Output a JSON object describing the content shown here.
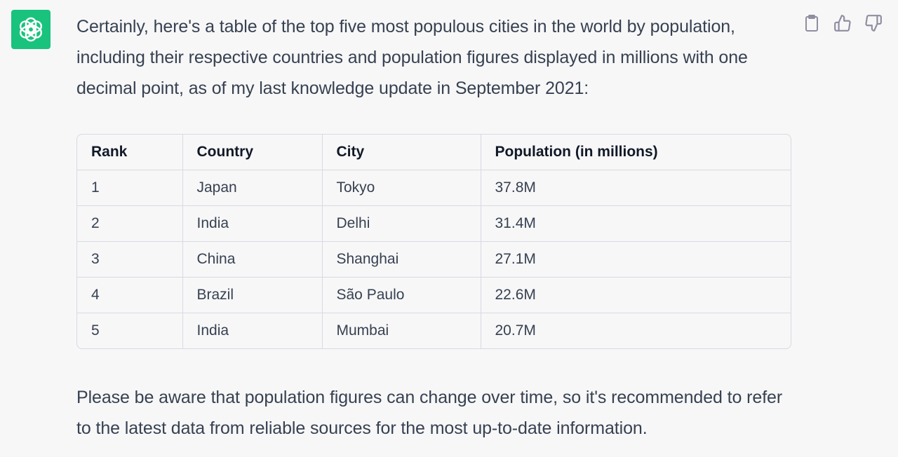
{
  "assistant": {
    "avatar_icon": "openai-logo-icon",
    "avatar_color": "#19c37d"
  },
  "actions": [
    {
      "icon": "clipboard-icon"
    },
    {
      "icon": "thumbs-up-icon"
    },
    {
      "icon": "thumbs-down-icon"
    }
  ],
  "message": {
    "intro": "Certainly, here's a table of the top five most populous cities in the world by population, including their respective countries and population figures displayed in millions with one decimal point, as of my last knowledge update in September 2021:",
    "outro": "Please be aware that population figures can change over time, so it's recommended to refer to the latest data from reliable sources for the most up-to-date information."
  },
  "table": {
    "headers": [
      "Rank",
      "Country",
      "City",
      "Population (in millions)"
    ],
    "rows": [
      [
        "1",
        "Japan",
        "Tokyo",
        "37.8M"
      ],
      [
        "2",
        "India",
        "Delhi",
        "31.4M"
      ],
      [
        "3",
        "China",
        "Shanghai",
        "27.1M"
      ],
      [
        "4",
        "Brazil",
        "São Paulo",
        "22.6M"
      ],
      [
        "5",
        "India",
        "Mumbai",
        "20.7M"
      ]
    ]
  }
}
